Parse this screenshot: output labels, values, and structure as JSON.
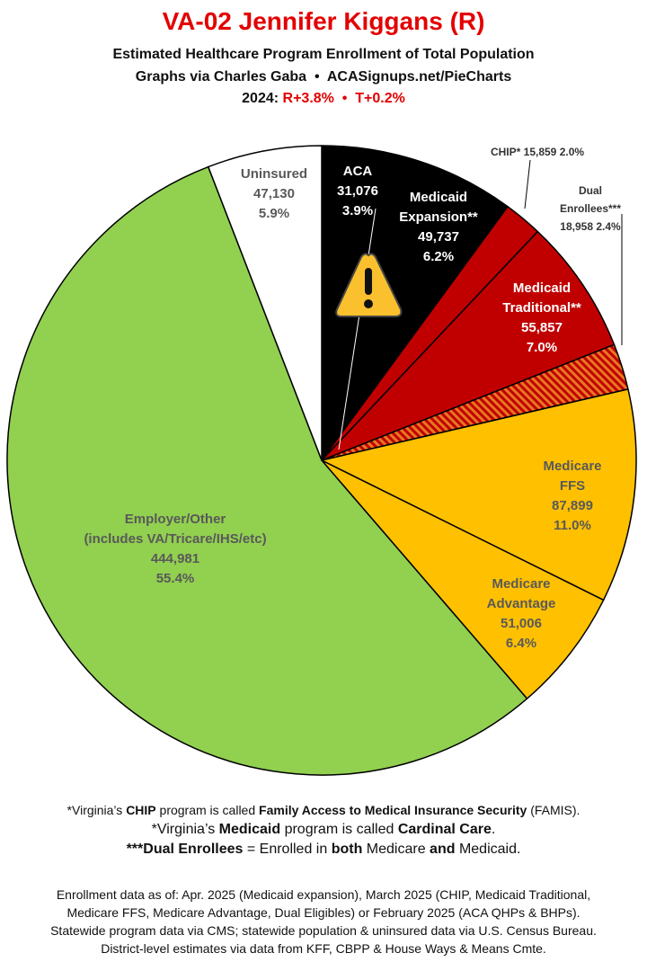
{
  "chart_data": {
    "type": "pie",
    "title": "VA-02 Jennifer Kiggans (R)",
    "subtitle": "Estimated Healthcare Program Enrollment of Total Population",
    "credit": "Graphs via Charles Gaba  •  ACASignups.net/PieCharts",
    "election_label": "2024:",
    "election_results": "R+3.8%  •  T+0.2%",
    "categories": [
      "ACA",
      "Medicaid\nExpansion**",
      "CHIP*",
      "Medicaid\nTraditional**",
      "Dual Enrollees***",
      "Medicare FFS",
      "Medicare\nAdvantage",
      "Employer/Other\n(includes VA/Tricare/IHS/etc)",
      "Uninsured"
    ],
    "values": [
      31076,
      49737,
      15859,
      55857,
      18958,
      87899,
      51006,
      444981,
      47130
    ],
    "value_labels": [
      "31,076",
      "49,737",
      "15,859",
      "55,857",
      "18,958",
      "87,899",
      "51,006",
      "444,981",
      "47,130"
    ],
    "percents": [
      3.9,
      6.2,
      2.0,
      7.0,
      2.4,
      11.0,
      6.4,
      55.4,
      5.9
    ],
    "percent_labels": [
      "3.9%",
      "6.2%",
      "2.0%",
      "7.0%",
      "2.4%",
      "11.0%",
      "6.4%",
      "55.4%",
      "5.9%"
    ],
    "colors": [
      "#000000",
      "#000000",
      "#c00000",
      "#c00000",
      "#c00000",
      "#ffc000",
      "#ffc000",
      "#92d050",
      "#ffffff"
    ],
    "hatched_slices": [
      4
    ],
    "hatch_color": "#e87722",
    "notes": [
      [
        "*Virginia’s ",
        "CHIP",
        " program is called ",
        "Family Access to Medical Insurance Security",
        " (FAMIS)."
      ],
      [
        "*Virginia’s ",
        "Medicaid",
        " program is called ",
        "Cardinal Care",
        "."
      ],
      [
        "***Dual Enrollees",
        " = Enrolled in ",
        "both",
        " Medicare ",
        "and",
        " Medicaid."
      ]
    ],
    "sources": [
      "Enrollment data as of: Apr. 2025 (Medicaid expansion), March 2025 (CHIP, Medicaid Traditional,",
      "Medicare FFS, Medicare Advantage, Dual Eligibles) or February 2025 (ACA QHPs & BHPs).",
      "Statewide program data via CMS; statewide population & uninsured data via U.S. Census Bureau.",
      "District-level estimates via data from KFF, CBPP & House Ways & Means Cmte."
    ]
  }
}
